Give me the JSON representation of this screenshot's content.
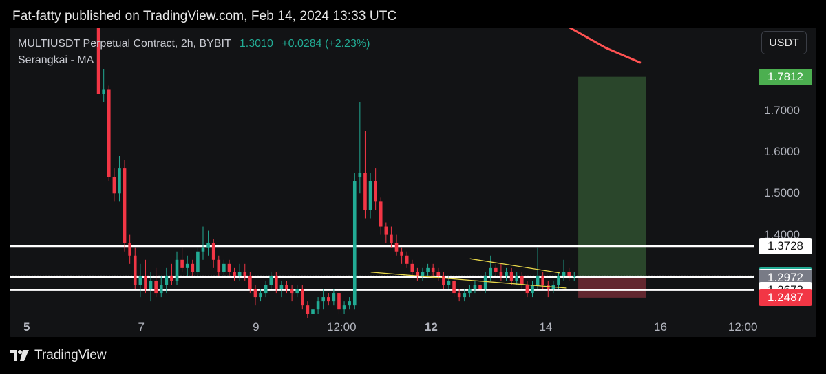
{
  "header": {
    "published_text": "Fat-fatty published on TradingView.com, Feb 14, 2024 13:33 UTC"
  },
  "legend": {
    "symbol_line": "MULTIUSDT Perpetual Contract, 2h, BYBIT",
    "last_price": "1.3010",
    "change": "+0.0284 (+2.23%)",
    "indicator": "Serangkai - MA"
  },
  "unit_button": "USDT",
  "footer": {
    "brand": "TradingView"
  },
  "colors": {
    "up": "#22ab94",
    "down": "#f23645",
    "ma": "#ff5252",
    "trend": "#e8d84a",
    "target_zone": "#2e4d2e",
    "stop_zone": "#6b2a32",
    "level": "#ffffff",
    "background": "#121315"
  },
  "chart_data": {
    "type": "candlestick",
    "symbol": "MULTIUSDT Perpetual Contract",
    "interval": "2h",
    "exchange": "BYBIT",
    "x_ticks": [
      "5",
      "7",
      "9",
      "12:00",
      "12",
      "14",
      "16",
      "12:00"
    ],
    "y_ticks": [
      "1.4000",
      "1.5000",
      "1.6000",
      "1.7000"
    ],
    "ylim": [
      1.217,
      1.9
    ],
    "price_labels": [
      {
        "text": "1.7812",
        "value": 1.7812,
        "kind": "target"
      },
      {
        "text": "1.3728",
        "value": 1.3728,
        "kind": "level"
      },
      {
        "text": "1.3010",
        "value": 1.301,
        "kind": "last"
      },
      {
        "text": "1.2983",
        "value": 1.2983,
        "kind": "level"
      },
      {
        "text": "1.2972",
        "value": 1.2972,
        "kind": "entry"
      },
      {
        "text": "1.2673",
        "value": 1.2673,
        "kind": "level"
      },
      {
        "text": "1.2487",
        "value": 1.2487,
        "kind": "stop"
      }
    ],
    "horizontal_levels": [
      1.3728,
      1.2983,
      1.2673
    ],
    "position": {
      "type": "long",
      "entry": 1.2972,
      "target": 1.7812,
      "stop": 1.2487
    },
    "ma_points": [
      [
        1.365,
        1.98
      ],
      [
        1.43,
        1.913
      ],
      [
        1.51,
        1.851
      ],
      [
        1.571,
        1.815
      ]
    ],
    "trend_lines": [
      [
        [
          1.1,
          1.3103
        ],
        [
          1.442,
          1.2717
        ]
      ],
      [
        [
          1.273,
          1.3427
        ],
        [
          1.43,
          1.3084
        ]
      ]
    ],
    "candles": [
      [
        1.92,
        1.92,
        1.74,
        1.74
      ],
      [
        1.74,
        1.8,
        1.72,
        1.75
      ],
      [
        1.75,
        1.76,
        1.53,
        1.54
      ],
      [
        1.54,
        1.56,
        1.48,
        1.5
      ],
      [
        1.5,
        1.59,
        1.48,
        1.56
      ],
      [
        1.56,
        1.58,
        1.36,
        1.38
      ],
      [
        1.38,
        1.4,
        1.33,
        1.35
      ],
      [
        1.35,
        1.37,
        1.27,
        1.28
      ],
      [
        1.28,
        1.33,
        1.25,
        1.3
      ],
      [
        1.3,
        1.34,
        1.26,
        1.27
      ],
      [
        1.27,
        1.31,
        1.24,
        1.29
      ],
      [
        1.29,
        1.32,
        1.25,
        1.26
      ],
      [
        1.26,
        1.3,
        1.25,
        1.28
      ],
      [
        1.28,
        1.32,
        1.26,
        1.3
      ],
      [
        1.3,
        1.33,
        1.28,
        1.29
      ],
      [
        1.29,
        1.36,
        1.28,
        1.34
      ],
      [
        1.34,
        1.37,
        1.31,
        1.32
      ],
      [
        1.32,
        1.35,
        1.3,
        1.33
      ],
      [
        1.33,
        1.34,
        1.3,
        1.31
      ],
      [
        1.31,
        1.37,
        1.3,
        1.36
      ],
      [
        1.36,
        1.42,
        1.34,
        1.37
      ],
      [
        1.37,
        1.41,
        1.35,
        1.38
      ],
      [
        1.38,
        1.39,
        1.32,
        1.34
      ],
      [
        1.34,
        1.35,
        1.3,
        1.31
      ],
      [
        1.31,
        1.34,
        1.3,
        1.33
      ],
      [
        1.33,
        1.34,
        1.3,
        1.31
      ],
      [
        1.31,
        1.32,
        1.29,
        1.3
      ],
      [
        1.3,
        1.33,
        1.29,
        1.31
      ],
      [
        1.31,
        1.33,
        1.29,
        1.3
      ],
      [
        1.3,
        1.31,
        1.26,
        1.27
      ],
      [
        1.27,
        1.28,
        1.23,
        1.25
      ],
      [
        1.25,
        1.27,
        1.24,
        1.26
      ],
      [
        1.26,
        1.29,
        1.25,
        1.28
      ],
      [
        1.28,
        1.31,
        1.27,
        1.3
      ],
      [
        1.3,
        1.31,
        1.26,
        1.27
      ],
      [
        1.27,
        1.29,
        1.25,
        1.28
      ],
      [
        1.28,
        1.29,
        1.26,
        1.27
      ],
      [
        1.27,
        1.28,
        1.24,
        1.26
      ],
      [
        1.26,
        1.28,
        1.25,
        1.27
      ],
      [
        1.27,
        1.28,
        1.22,
        1.23
      ],
      [
        1.23,
        1.24,
        1.2,
        1.21
      ],
      [
        1.21,
        1.23,
        1.2,
        1.22
      ],
      [
        1.22,
        1.25,
        1.21,
        1.24
      ],
      [
        1.24,
        1.27,
        1.22,
        1.25
      ],
      [
        1.25,
        1.26,
        1.23,
        1.24
      ],
      [
        1.24,
        1.27,
        1.23,
        1.26
      ],
      [
        1.26,
        1.27,
        1.21,
        1.22
      ],
      [
        1.22,
        1.24,
        1.21,
        1.23
      ],
      [
        1.23,
        1.25,
        1.22,
        1.24
      ],
      [
        1.23,
        1.55,
        1.22,
        1.53
      ],
      [
        1.54,
        1.72,
        1.5,
        1.55
      ],
      [
        1.55,
        1.65,
        1.44,
        1.46
      ],
      [
        1.46,
        1.55,
        1.44,
        1.53
      ],
      [
        1.53,
        1.56,
        1.46,
        1.48
      ],
      [
        1.48,
        1.49,
        1.4,
        1.42
      ],
      [
        1.42,
        1.43,
        1.38,
        1.4
      ],
      [
        1.4,
        1.42,
        1.37,
        1.38
      ],
      [
        1.38,
        1.4,
        1.35,
        1.36
      ],
      [
        1.36,
        1.37,
        1.33,
        1.35
      ],
      [
        1.35,
        1.36,
        1.32,
        1.33
      ],
      [
        1.33,
        1.34,
        1.3,
        1.31
      ],
      [
        1.31,
        1.32,
        1.29,
        1.3
      ],
      [
        1.3,
        1.32,
        1.29,
        1.31
      ],
      [
        1.31,
        1.33,
        1.3,
        1.32
      ],
      [
        1.32,
        1.33,
        1.3,
        1.31
      ],
      [
        1.31,
        1.32,
        1.29,
        1.3
      ],
      [
        1.3,
        1.31,
        1.27,
        1.28
      ],
      [
        1.28,
        1.3,
        1.27,
        1.29
      ],
      [
        1.29,
        1.3,
        1.25,
        1.26
      ],
      [
        1.26,
        1.27,
        1.24,
        1.25
      ],
      [
        1.25,
        1.27,
        1.24,
        1.26
      ],
      [
        1.26,
        1.28,
        1.25,
        1.27
      ],
      [
        1.27,
        1.29,
        1.26,
        1.28
      ],
      [
        1.28,
        1.3,
        1.26,
        1.27
      ],
      [
        1.27,
        1.31,
        1.26,
        1.3
      ],
      [
        1.3,
        1.35,
        1.29,
        1.32
      ],
      [
        1.32,
        1.33,
        1.3,
        1.31
      ],
      [
        1.31,
        1.33,
        1.29,
        1.3
      ],
      [
        1.3,
        1.32,
        1.29,
        1.31
      ],
      [
        1.31,
        1.32,
        1.28,
        1.29
      ],
      [
        1.29,
        1.31,
        1.28,
        1.3
      ],
      [
        1.3,
        1.31,
        1.27,
        1.28
      ],
      [
        1.28,
        1.29,
        1.25,
        1.26
      ],
      [
        1.26,
        1.29,
        1.25,
        1.28
      ],
      [
        1.28,
        1.37,
        1.27,
        1.3
      ],
      [
        1.3,
        1.31,
        1.27,
        1.28
      ],
      [
        1.28,
        1.29,
        1.25,
        1.27
      ],
      [
        1.27,
        1.29,
        1.26,
        1.28
      ],
      [
        1.28,
        1.31,
        1.27,
        1.3
      ],
      [
        1.3,
        1.34,
        1.29,
        1.31
      ],
      [
        1.31,
        1.32,
        1.29,
        1.3
      ],
      [
        1.3,
        1.31,
        1.29,
        1.3
      ]
    ]
  }
}
